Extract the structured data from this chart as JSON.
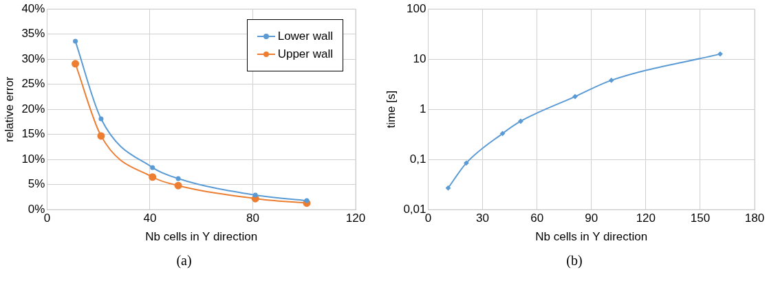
{
  "chart_data": [
    {
      "type": "line",
      "xlabel": "Nb cells in Y direction",
      "ylabel": "relative error",
      "x": [
        11,
        21,
        41,
        51,
        81,
        101
      ],
      "xlim": [
        0,
        120
      ],
      "xticks": [
        0,
        40,
        80,
        120
      ],
      "ylim": [
        0,
        40
      ],
      "yticks": [
        {
          "value": 0,
          "label": "0%"
        },
        {
          "value": 5,
          "label": "5%"
        },
        {
          "value": 10,
          "label": "10%"
        },
        {
          "value": 15,
          "label": "15%"
        },
        {
          "value": 20,
          "label": "20%"
        },
        {
          "value": 25,
          "label": "25%"
        },
        {
          "value": 30,
          "label": "30%"
        },
        {
          "value": 35,
          "label": "35%"
        },
        {
          "value": 40,
          "label": "40%"
        }
      ],
      "series": [
        {
          "name": "Lower wall",
          "color": "#5b9bd5",
          "values": [
            33.6,
            18.1,
            8.4,
            6.2,
            2.9,
            1.8
          ]
        },
        {
          "name": "Upper wall",
          "color": "#ed7d31",
          "values": [
            29.1,
            14.7,
            6.5,
            4.8,
            2.2,
            1.3
          ]
        }
      ],
      "grid": true,
      "legend": "top right",
      "marker": "circle",
      "line_style": "solid",
      "annotations": [
        "(a)"
      ]
    },
    {
      "type": "line",
      "xlabel": "Nb cells in Y direction",
      "ylabel": "time [s]",
      "x": [
        11,
        21,
        41,
        51,
        81,
        101,
        161
      ],
      "xlim": [
        0,
        180
      ],
      "xticks": [
        0,
        30,
        60,
        90,
        120,
        150,
        180
      ],
      "ylim": [
        0.01,
        100
      ],
      "yticks": [
        {
          "value": 0.01,
          "label": "0,01"
        },
        {
          "value": 0.1,
          "label": "0,1"
        },
        1,
        10,
        100
      ],
      "log": "y",
      "series": [
        {
          "color": "#5b9bd5",
          "values": [
            0.027,
            0.085,
            0.33,
            0.58,
            1.8,
            3.8,
            12.7
          ]
        }
      ],
      "grid": true,
      "marker": "diamond",
      "line_style": "solid",
      "annotations": [
        "(b)"
      ]
    }
  ]
}
